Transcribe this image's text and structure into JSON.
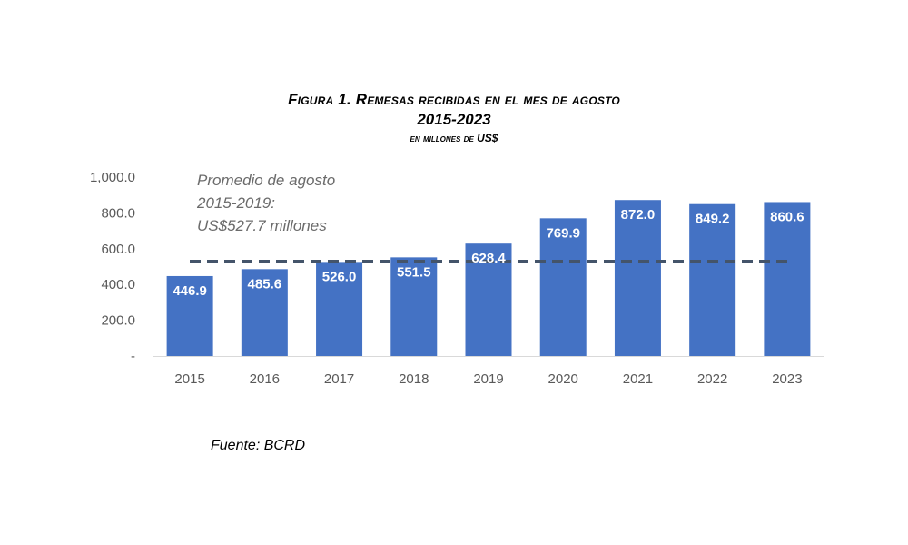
{
  "title": {
    "line1": "Figura 1. Remesas recibidas en el mes de agosto",
    "line2": "2015-2023",
    "line3": "en millones de US$"
  },
  "annotation": {
    "line1": "Promedio de agosto",
    "line2": "2015-2019:",
    "line3": "US$527.7 millones"
  },
  "source": "Fuente: BCRD",
  "chart_data": {
    "type": "bar",
    "categories": [
      "2015",
      "2016",
      "2017",
      "2018",
      "2019",
      "2020",
      "2021",
      "2022",
      "2023"
    ],
    "values": [
      446.9,
      485.6,
      526.0,
      551.5,
      628.4,
      769.9,
      872.0,
      849.2,
      860.6
    ],
    "value_labels": [
      "446.9",
      "485.6",
      "526.0",
      "551.5",
      "628.4",
      "769.9",
      "872.0",
      "849.2",
      "860.6"
    ],
    "ylim": [
      0,
      1000
    ],
    "yticks": [
      0,
      200,
      400,
      600,
      800,
      1000
    ],
    "ytick_labels": [
      "-",
      "200.0",
      "400.0",
      "600.0",
      "800.0",
      "1,000.0"
    ],
    "reference_line": {
      "value": 527.7,
      "style": "dashed"
    },
    "bar_color": "#4472c4",
    "reference_line_color": "#44546a",
    "label_color": "#ffffff",
    "grid": false
  }
}
